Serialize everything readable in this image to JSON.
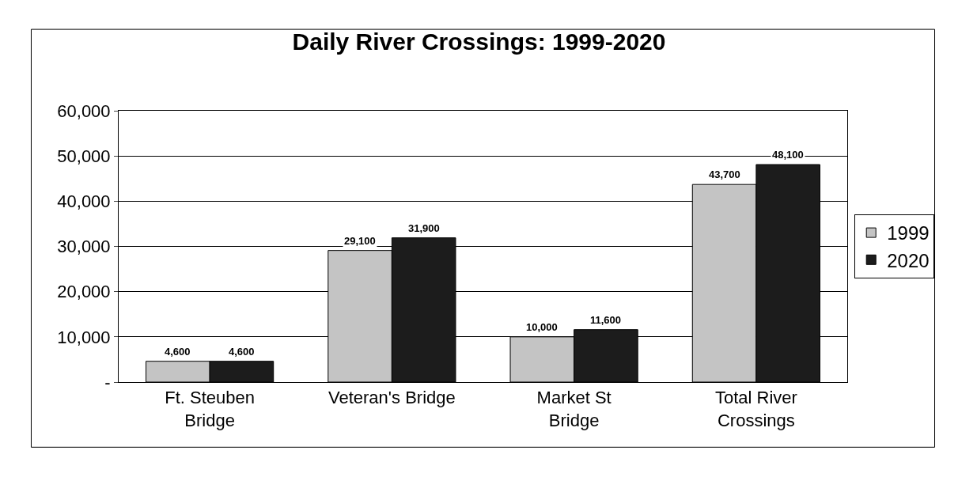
{
  "chart_data": {
    "type": "bar",
    "title": "Daily River Crossings: 1999-2020",
    "categories": [
      "Ft. Steuben\nBridge",
      "Veteran's Bridge",
      "Market St\nBridge",
      "Total River\nCrossings"
    ],
    "series": [
      {
        "name": "1999",
        "color": "#c4c4c4",
        "values": [
          4600,
          29100,
          10000,
          43700
        ],
        "value_labels": [
          "4,600",
          "29,100",
          "10,000",
          "43,700"
        ]
      },
      {
        "name": "2020",
        "color": "#1c1c1c",
        "values": [
          4600,
          31900,
          11600,
          48100
        ],
        "value_labels": [
          "4,600",
          "31,900",
          "11,600",
          "48,100"
        ]
      }
    ],
    "ylim": [
      0,
      60000
    ],
    "yticks": [
      {
        "value": 0,
        "label": "-"
      },
      {
        "value": 10000,
        "label": "10,000"
      },
      {
        "value": 20000,
        "label": "20,000"
      },
      {
        "value": 30000,
        "label": "30,000"
      },
      {
        "value": 40000,
        "label": "40,000"
      },
      {
        "value": 50000,
        "label": "50,000"
      },
      {
        "value": 60000,
        "label": "60,000"
      }
    ],
    "grid": "y",
    "legend": "right"
  }
}
